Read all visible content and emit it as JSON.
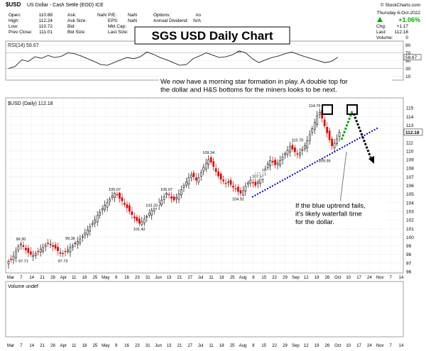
{
  "header": {
    "symbol": "$USD",
    "description": "US Dollar - Cash Settle (EOD) ICE",
    "site": "© StockCharts.com",
    "date": "Thursday  6-Oct-2022",
    "change_pct": "+1.06%",
    "stats": [
      {
        "label": "Open:",
        "value": "110.88"
      },
      {
        "label": "High:",
        "value": "112.24"
      },
      {
        "label": "Low:",
        "value": "110.72"
      },
      {
        "label": "Prev Close:",
        "value": "111.01"
      },
      {
        "label": "Ask:",
        "value": "NaN"
      },
      {
        "label": "Ask Size:",
        "value": ""
      },
      {
        "label": "Bid:",
        "value": ""
      },
      {
        "label": "Bid Size:",
        "value": ""
      },
      {
        "label": "P/E:",
        "value": "NaN"
      },
      {
        "label": "EPS:",
        "value": "NaN"
      },
      {
        "label": "Mkt Cap:",
        "value": ""
      },
      {
        "label": "Last Size:",
        "value": ""
      },
      {
        "label": "Options:",
        "value": "no"
      },
      {
        "label": "Annual Dividend:",
        "value": "N/A"
      },
      {
        "label": "Chg:",
        "value": "+1.17"
      },
      {
        "label": "Last:",
        "value": "112.18"
      },
      {
        "label": "Volume:",
        "value": "0"
      }
    ]
  },
  "annotations": {
    "title": "SGS USD Daily Chart",
    "note_top": "We now have a morning star formation in play.  A double top for the dollar and H&S bottoms for the miners looks to be next.",
    "note_bottom": "If the blue uptrend fails, it's likely waterfall time for the dollar."
  },
  "colors": {
    "up": "#111111",
    "down": "#dd0000",
    "trendline": "#0000cc",
    "projection_green": "#00aa00",
    "rsi_overbought_fill": "#88bb66",
    "rsi_oversold_fill": "#88bb66",
    "panel_border": "#888888",
    "grid": "#dddddd"
  },
  "chart_data": [
    {
      "type": "line",
      "panel": "RSI",
      "label": "RSI(14) 58.67",
      "y_ticks": [
        10,
        30,
        50,
        70,
        90
      ],
      "ylim": [
        0,
        100
      ],
      "last_value": 58.67,
      "x_labels": [
        "Mar",
        "7",
        "14",
        "21",
        "28",
        "Apr",
        "11",
        "18",
        "25",
        "May",
        "9",
        "16",
        "23",
        "31",
        "Jun",
        "13",
        "21",
        "27",
        "Jul",
        "11",
        "18",
        "25",
        "Aug",
        "8",
        "15",
        "22",
        "29",
        "Sep",
        "12",
        "19",
        "26",
        "Oct",
        "10",
        "17",
        "24",
        "Nov",
        "7",
        "14"
      ],
      "values": [
        30,
        35,
        52,
        48,
        60,
        56,
        63,
        58,
        61,
        70,
        68,
        62,
        55,
        48,
        40,
        38,
        45,
        52,
        58,
        55,
        60,
        72,
        66,
        58,
        52,
        45,
        38,
        40,
        55,
        62,
        70,
        64,
        58,
        60,
        65,
        75,
        70,
        55,
        45,
        52,
        58,
        62,
        68,
        72,
        66,
        60,
        55,
        50,
        45,
        48,
        58.67
      ]
    },
    {
      "type": "candlestick",
      "panel": "Price",
      "label": "$USD (Daily) 112.18",
      "ylim": [
        96,
        116
      ],
      "y_ticks": [
        96,
        97,
        98,
        99,
        100,
        101,
        102,
        103,
        104,
        105,
        106,
        107,
        108,
        109,
        110,
        111,
        112,
        113,
        114,
        115
      ],
      "last_value": 112.18,
      "x_labels": [
        "Mar",
        "7",
        "14",
        "21",
        "28",
        "Apr",
        "11",
        "18",
        "25",
        "May",
        "9",
        "16",
        "23",
        "31",
        "Jun",
        "13",
        "21",
        "27",
        "Jul",
        "11",
        "18",
        "25",
        "Aug",
        "8",
        "15",
        "22",
        "29",
        "Sep",
        "12",
        "19",
        "26",
        "Oct",
        "10",
        "17",
        "24",
        "Nov",
        "7",
        "14"
      ],
      "point_labels": [
        "97.71",
        "99.30",
        "97.73",
        "99.36",
        "105.07",
        "101.42",
        "103.20",
        "105.07",
        "109.34",
        "104.92",
        "106.81",
        "107.57",
        "110.79",
        "109.36",
        "114.75"
      ],
      "closes": [
        97.2,
        97.4,
        97.8,
        98.4,
        98.9,
        99.2,
        98.9,
        98.5,
        98.2,
        98.0,
        97.9,
        98.1,
        98.3,
        98.6,
        98.8,
        99.1,
        99.3,
        99.2,
        98.9,
        98.7,
        98.4,
        98.2,
        98.1,
        98.3,
        98.5,
        98.8,
        99.0,
        99.3,
        99.5,
        99.8,
        100.1,
        100.5,
        100.8,
        101.2,
        101.6,
        102.0,
        102.5,
        102.9,
        103.3,
        103.7,
        104.0,
        104.4,
        104.8,
        105.1,
        104.9,
        104.5,
        104.2,
        103.8,
        103.4,
        103.0,
        102.6,
        102.2,
        101.9,
        101.6,
        101.8,
        102.1,
        102.4,
        102.8,
        103.1,
        103.4,
        103.7,
        104.0,
        104.3,
        104.7,
        105.1,
        104.9,
        104.5,
        104.3,
        104.6,
        105.0,
        105.5,
        106.0,
        106.4,
        106.9,
        107.2,
        107.0,
        106.6,
        106.9,
        107.5,
        108.1,
        108.6,
        109.0,
        108.7,
        108.2,
        107.6,
        107.1,
        106.7,
        106.5,
        106.2,
        106.4,
        106.1,
        105.8,
        105.6,
        105.3,
        105.1,
        105.4,
        105.9,
        106.3,
        106.6,
        106.3,
        106.0,
        106.4,
        106.9,
        107.4,
        107.9,
        108.5,
        108.9,
        108.7,
        108.4,
        108.6,
        108.9,
        109.3,
        109.7,
        110.1,
        110.5,
        110.2,
        109.9,
        109.6,
        109.8,
        110.2,
        110.6,
        111.2,
        111.9,
        112.6,
        113.3,
        114.1,
        114.5,
        113.8,
        112.9,
        112.1,
        111.3,
        110.6,
        110.9,
        111.4,
        112.18
      ]
    }
  ]
}
